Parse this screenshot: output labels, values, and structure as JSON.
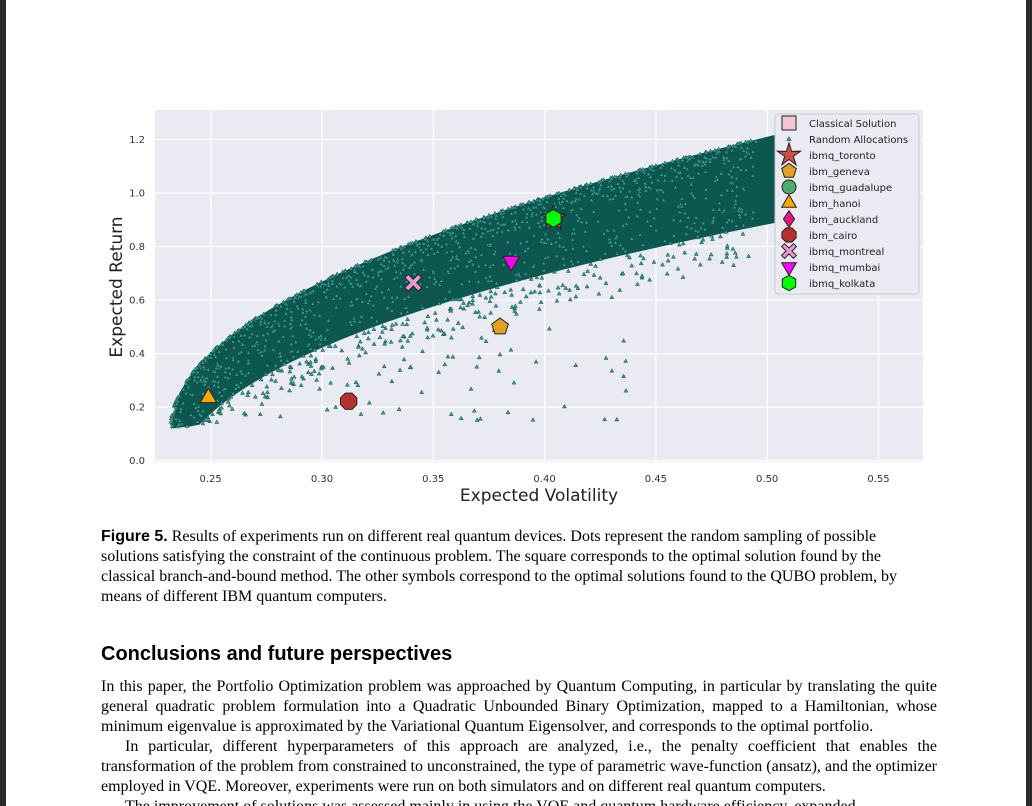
{
  "chart_data": {
    "type": "scatter",
    "xlabel": "Expected Volatility",
    "ylabel": "Expected Return",
    "xlim": [
      0.225,
      0.57
    ],
    "ylim": [
      -0.005,
      1.31
    ],
    "xticks": [
      "0.25",
      "0.30",
      "0.35",
      "0.40",
      "0.45",
      "0.50",
      "0.55"
    ],
    "yticks": [
      "0.0",
      "0.2",
      "0.4",
      "0.6",
      "0.8",
      "1.0",
      "1.2"
    ],
    "grid": true,
    "legend_position": "top-right",
    "random_allocations": {
      "name": "Random Allocations",
      "color": "#2f9e93",
      "edge_color": "#0b3b36",
      "frontier_color": "#0d5750",
      "volatility_range": [
        0.232,
        0.51
      ],
      "return_range": [
        0.1,
        1.23
      ]
    },
    "series": [
      {
        "name": "Classical Solution",
        "marker": "square",
        "color": "#f4c6cf",
        "x": null,
        "y": null
      },
      {
        "name": "ibmq_toronto",
        "marker": "star",
        "color": "#c9504a",
        "x": 0.404,
        "y": 0.905
      },
      {
        "name": "ibm_geneva",
        "marker": "pentagon",
        "color": "#e0a123",
        "x": 0.38,
        "y": 0.5
      },
      {
        "name": "ibmq_guadalupe",
        "marker": "circle",
        "color": "#4fab6a",
        "x": null,
        "y": null
      },
      {
        "name": "ibm_hanoi",
        "marker": "triangle-up",
        "color": "#ffa500",
        "x": 0.249,
        "y": 0.235
      },
      {
        "name": "ibm_auckland",
        "marker": "diamond",
        "color": "#e8157d",
        "x": null,
        "y": null
      },
      {
        "name": "ibm_cairo",
        "marker": "octagon",
        "color": "#b8302e",
        "x": 0.312,
        "y": 0.222
      },
      {
        "name": "ibmq_montreal",
        "marker": "x-thick",
        "color": "#e89ad6",
        "x": 0.341,
        "y": 0.665
      },
      {
        "name": "ibmq_mumbai",
        "marker": "triangle-down",
        "color": "#ff00ff",
        "x": 0.385,
        "y": 0.745
      },
      {
        "name": "ibmq_kolkata",
        "marker": "hexagon",
        "color": "#00ff00",
        "x": 0.404,
        "y": 0.905
      }
    ]
  },
  "caption": {
    "label": "Figure 5.",
    "text": " Results of experiments run on different real quantum devices. Dots represent the random sampling of possible solutions satisfying the constraint of the continuous problem. The square corresponds to the optimal solution found by the classical branch-and-bound method. The other symbols correspond to the optimal solutions found to the QUBO problem, by means of different IBM quantum computers."
  },
  "section": {
    "title": "Conclusions and future perspectives",
    "paragraphs": [
      "In this paper, the Portfolio Optimization problem was approached by Quantum Computing, in particular by translating the quite general quadratic problem formulation into a Quadratic Unbounded Binary Optimization, mapped to a Hamiltonian, whose minimum eigenvalue is approximated by the Variational Quantum Eigensolver, and corresponds to the optimal portfolio.",
      "In particular, different hyperparameters of this approach are analyzed, i.e., the penalty coefficient that enables the transformation of the problem from constrained to unconstrained, the type of parametric wave-function (ansatz), and the optimizer employed in VQE. Moreover, experiments were run on both simulators and on different real quantum computers.",
      "The improvement of solutions was assessed mainly in using the VQE and quantum hardware efficiency, expanded"
    ]
  }
}
